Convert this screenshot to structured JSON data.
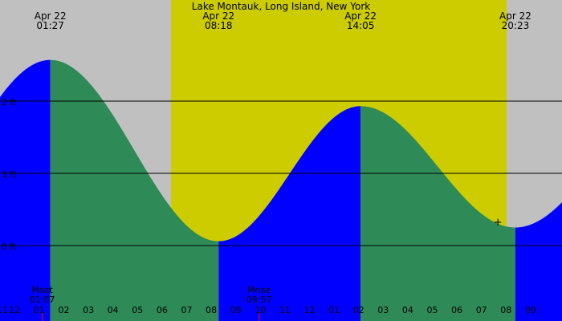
{
  "chart_data": {
    "type": "area",
    "title": "Lake Montauk, Long Island, New York",
    "colors": {
      "night": "#c0c0c0",
      "day": "#cccc00",
      "rising": "#0000ff",
      "falling": "#2e8b57",
      "gridline": "#000000",
      "moon_marker": "#ff0000"
    },
    "x_unit": "hour",
    "xlim": [
      23.45,
      34.95
    ],
    "ylim": [
      -0.74,
      3.22
    ],
    "day_period": [
      28.8,
      36.45
    ],
    "y_ticks": [
      {
        "value": 0,
        "label": "0 ft"
      },
      {
        "value": 1,
        "label": "1 ft"
      },
      {
        "value": 2,
        "label": "2 ft"
      }
    ],
    "hour_ticks": [
      {
        "x": 23.5,
        "label": "11"
      },
      {
        "x": 24,
        "label": "12"
      },
      {
        "x": 25,
        "label": "01"
      },
      {
        "x": 26,
        "label": "02"
      },
      {
        "x": 27,
        "label": "03"
      },
      {
        "x": 28,
        "label": "04"
      },
      {
        "x": 29,
        "label": "05"
      },
      {
        "x": 30,
        "label": "06"
      },
      {
        "x": 31,
        "label": "07"
      },
      {
        "x": 32,
        "label": "08"
      },
      {
        "x": 33,
        "label": "09"
      },
      {
        "x": 34,
        "label": "10"
      },
      {
        "x": 35,
        "label": "11"
      },
      {
        "x": 36,
        "label": "12"
      },
      {
        "x": 37,
        "label": "01"
      },
      {
        "x": 38,
        "label": "02"
      },
      {
        "x": 39,
        "label": "03"
      },
      {
        "x": 40,
        "label": "04"
      },
      {
        "x": 41,
        "label": "05"
      },
      {
        "x": 42,
        "label": "06"
      },
      {
        "x": 43,
        "label": "07"
      },
      {
        "x": 44,
        "label": "08"
      },
      {
        "x": 45,
        "label": "09"
      }
    ],
    "extrema": [
      {
        "time": 25.45,
        "height": 2.57,
        "date": "Apr 22",
        "time_label": "01:27",
        "kind": "high"
      },
      {
        "time": 32.3,
        "height": 0.06,
        "date": "Apr 22",
        "time_label": "08:18",
        "kind": "low"
      },
      {
        "time": 38.08,
        "height": 1.93,
        "date": "Apr 22",
        "time_label": "14:05",
        "kind": "high"
      },
      {
        "time": 44.38,
        "height": 0.25,
        "date": "Apr 22",
        "time_label": "20:23",
        "kind": "low"
      }
    ],
    "curve_x_range": [
      23.4,
      45.8
    ],
    "curve_end_points": {
      "start_height": 1.76,
      "end_height": 0.53
    },
    "moon_events": [
      {
        "name": "Mset",
        "time_label": "01:07",
        "time": 25.12
      },
      {
        "name": "Mrise",
        "time_label": "09:57",
        "time": 33.95
      }
    ],
    "markers": [
      {
        "symbol": "+",
        "time": 43.67,
        "height": 0.32
      }
    ]
  }
}
